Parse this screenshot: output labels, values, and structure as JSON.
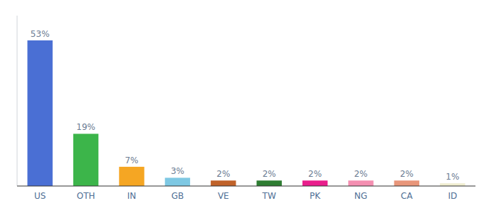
{
  "chart_data": {
    "type": "bar",
    "categories": [
      "US",
      "OTH",
      "IN",
      "GB",
      "VE",
      "TW",
      "PK",
      "NG",
      "CA",
      "ID"
    ],
    "values": [
      53,
      19,
      7,
      3,
      2,
      2,
      2,
      2,
      2,
      1
    ],
    "value_labels": [
      "53%",
      "19%",
      "7%",
      "3%",
      "2%",
      "2%",
      "2%",
      "2%",
      "2%",
      "1%"
    ],
    "colors": [
      "#4A6FD4",
      "#3CB54A",
      "#F5A623",
      "#7EC8E3",
      "#C0622A",
      "#2E7D32",
      "#E91E8C",
      "#F48FB1",
      "#E8967A",
      "#F0EDD0"
    ],
    "ylim": [
      0,
      62
    ],
    "data_labels": true,
    "tick_labels": "x"
  }
}
